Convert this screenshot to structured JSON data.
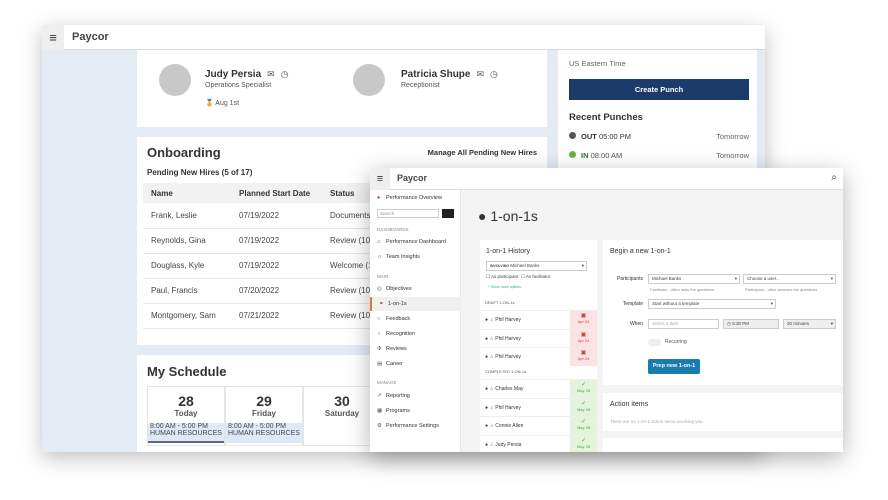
{
  "back": {
    "logo": "Paycor",
    "team": [
      {
        "name": "Judy Persia",
        "role": "Operations Specialist",
        "anniversary": "Aug 1st"
      },
      {
        "name": "Patricia Shupe",
        "role": "Receptionist"
      }
    ],
    "onboarding": {
      "title": "Onboarding",
      "manage_link": "Manage All Pending New Hires",
      "subtitle": "Pending New Hires (5 of 17)",
      "columns": [
        "Name",
        "Planned Start Date",
        "Status"
      ],
      "rows": [
        [
          "Frank, Leslie",
          "07/19/2022",
          "Documents"
        ],
        [
          "Reynolds, Gina",
          "07/19/2022",
          "Review (10"
        ],
        [
          "Douglass, Kyle",
          "07/19/2022",
          "Welcome (1"
        ],
        [
          "Paul, Francis",
          "07/20/2022",
          "Review (10"
        ],
        [
          "Montgomery, Sam",
          "07/21/2022",
          "Review (10"
        ]
      ]
    },
    "schedule": {
      "title": "My Schedule",
      "days": [
        {
          "num": "28",
          "label": "Today",
          "time": "8:00 AM - 5:00 PM",
          "dept": "HUMAN RESOURCES"
        },
        {
          "num": "29",
          "label": "Friday",
          "time": "8:00 AM - 5:00 PM",
          "dept": "HUMAN RESOURCES"
        },
        {
          "num": "30",
          "label": "Saturday"
        }
      ]
    },
    "punch": {
      "timezone": "US Eastern Time",
      "create_label": "Create Punch",
      "recent_title": "Recent Punches",
      "items": [
        {
          "type": "OUT",
          "time": "05:00 PM",
          "when": "Tomorrow",
          "color": "#555555"
        },
        {
          "type": "IN",
          "time": "08:00 AM",
          "when": "Tomorrow",
          "color": "#6cb33f"
        }
      ]
    }
  },
  "front": {
    "logo": "Paycor",
    "sidebar": {
      "top": "Performance Overview",
      "search_placeholder": "Search",
      "sections": [
        {
          "title": "DASHBOARDS",
          "items": [
            "Performance Dashboard",
            "Team Insights"
          ]
        },
        {
          "title": "MAIN",
          "items": [
            "Objectives",
            "1-on-1s",
            "Feedback",
            "Recognition",
            "Reviews",
            "Career"
          ]
        },
        {
          "title": "MANAGE",
          "items": [
            "Reporting",
            "Programs",
            "Performance Settings"
          ]
        }
      ]
    },
    "title": "1-on-1s",
    "history": {
      "title": "1-on-1 History",
      "filter_label": "INVOLVING",
      "filter_value": "Michael Banks",
      "as_participant": "As participant",
      "as_facilitator": "As facilitator",
      "more": "+ Show more options",
      "draft_title": "DRAFT 1-ON-1s",
      "drafts": [
        {
          "name": "Phil Harvey",
          "date": "Apr 24"
        },
        {
          "name": "Phil Harvey",
          "date": "Apr 24"
        },
        {
          "name": "Phil Harvey",
          "date": "Apr 24"
        }
      ],
      "completed_title": "COMPLETED 1-ON-1s",
      "completed": [
        {
          "name": "Charles May",
          "date": "May 28"
        },
        {
          "name": "Phil Harvey",
          "date": "May 28"
        },
        {
          "name": "Connie Allen",
          "date": "May 28"
        },
        {
          "name": "Judy Persia",
          "date": "May 28"
        }
      ]
    },
    "begin": {
      "title": "Begin a new 1-on-1",
      "participants_label": "Participants",
      "facilitator": "Michael Banks",
      "facilitator_hint": "Facilitator - often asks the questions",
      "participant_placeholder": "Choose a user...",
      "participant_hint": "Participant - often answers the questions",
      "template_label": "Template",
      "template_value": "Start without a template",
      "when_label": "When",
      "date_placeholder": "Select a date",
      "time_value": "5:30 PM",
      "duration": "30 minutes",
      "recurring": "Recurring",
      "recurring_on": false,
      "submit": "Prep new 1-on-1",
      "accent": "#1a7bb0"
    },
    "actions": {
      "title": "Action items",
      "empty": "There are no 1-on-1 action items involving you."
    }
  }
}
